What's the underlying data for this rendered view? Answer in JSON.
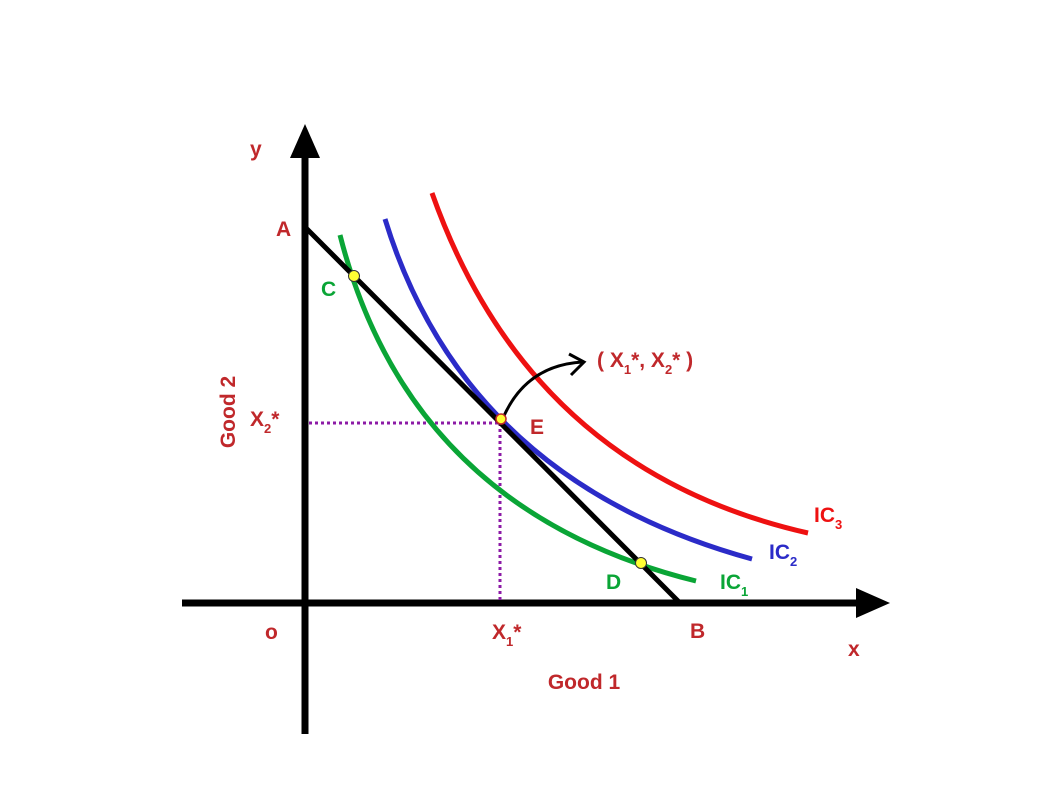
{
  "colors": {
    "axis": "#000000",
    "label": "#c0282b",
    "ic1": "#0aa536",
    "ic2": "#2b2bc8",
    "ic3": "#ee1111",
    "budget_line": "#000000",
    "guide": "#8c1aa6",
    "point_fill": "#ffff33"
  },
  "axes": {
    "y_label": "y",
    "x_label": "x",
    "origin_label": "o",
    "y_title": "Good 2",
    "x_title": "Good 1"
  },
  "budget_line": {
    "intercept_y_label": "A",
    "intercept_x_label": "B"
  },
  "curves": [
    {
      "label": "IC",
      "subscript": "1"
    },
    {
      "label": "IC",
      "subscript": "2"
    },
    {
      "label": "IC",
      "subscript": "3"
    }
  ],
  "points": {
    "c": "C",
    "d": "D",
    "e": "E"
  },
  "equilibrium": {
    "x_main": "X",
    "x_sub": "1",
    "x_star": "*",
    "y_main": "X",
    "y_sub": "2",
    "y_star": "*",
    "annotation_open": "( X",
    "annotation_mid": "*, X",
    "annotation_close": "* )",
    "annotation_sub1": "1",
    "annotation_sub2": "2"
  }
}
